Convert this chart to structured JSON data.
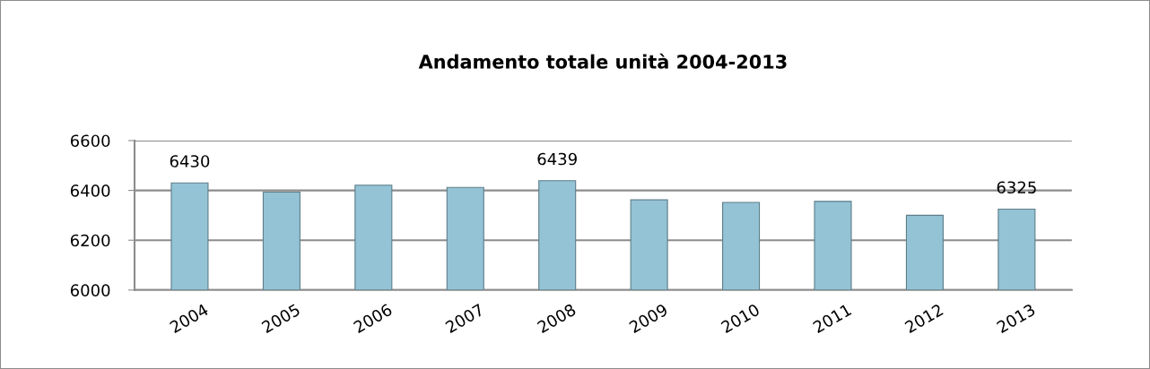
{
  "chart_data": {
    "type": "bar",
    "title": "Andamento totale unità 2004-2013",
    "categories": [
      "2004",
      "2005",
      "2006",
      "2007",
      "2008",
      "2009",
      "2010",
      "2011",
      "2012",
      "2013"
    ],
    "values": [
      6430,
      6393,
      6421,
      6412,
      6439,
      6362,
      6352,
      6356,
      6300,
      6325
    ],
    "value_labels": [
      "6430",
      null,
      null,
      null,
      "6439",
      null,
      null,
      null,
      null,
      "6325"
    ],
    "color": "#93c3d5",
    "ylim": [
      6000,
      6600
    ],
    "yticks": [
      6000,
      6200,
      6400,
      6600
    ],
    "grid": "y",
    "legend": false
  }
}
